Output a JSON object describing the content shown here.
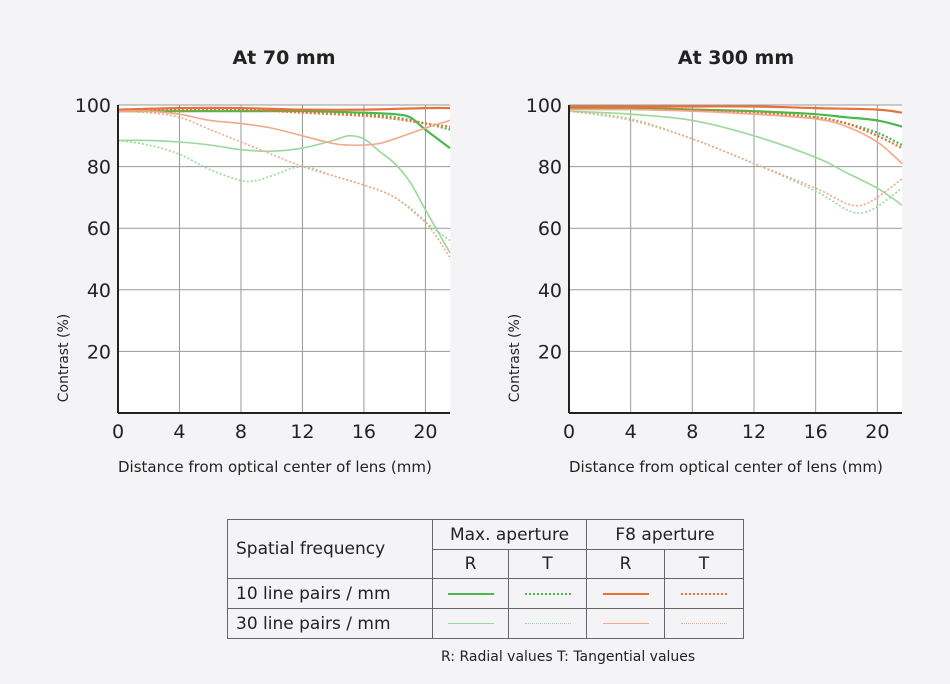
{
  "colors": {
    "max_10": "#4cb84c",
    "max_30": "#9bd89b",
    "f8_10": "#e8703a",
    "f8_30": "#f2a98a",
    "grid": "#999999",
    "axis": "#222222"
  },
  "chart_data": [
    {
      "type": "line",
      "title": "At 70 mm",
      "xlabel": "Distance from optical center of lens (mm)",
      "ylabel": "Contrast (%)",
      "xlim": [
        0,
        21.6
      ],
      "ylim": [
        0,
        100
      ],
      "xticks": [
        "0",
        "4",
        "8",
        "12",
        "16",
        "20"
      ],
      "yticks": [
        "20",
        "40",
        "60",
        "80",
        "100"
      ],
      "grid": true,
      "series": [
        {
          "key": "max_10",
          "style": "solid",
          "points": [
            [
              0,
              98
            ],
            [
              4,
              98
            ],
            [
              8,
              98
            ],
            [
              12,
              98
            ],
            [
              16,
              97.5
            ],
            [
              18,
              97
            ],
            [
              19,
              96
            ],
            [
              20,
              92
            ],
            [
              21.6,
              86
            ]
          ]
        },
        {
          "key": "max_10",
          "style": "dotted",
          "points": [
            [
              0,
              98
            ],
            [
              4,
              98
            ],
            [
              8,
              98.5
            ],
            [
              12,
              98
            ],
            [
              16,
              97
            ],
            [
              18,
              96
            ],
            [
              20,
              94
            ],
            [
              21.6,
              92
            ]
          ]
        },
        {
          "key": "max_30",
          "style": "solid",
          "points": [
            [
              0,
              88.5
            ],
            [
              2,
              88.5
            ],
            [
              4,
              88
            ],
            [
              6,
              87
            ],
            [
              8,
              85.5
            ],
            [
              10,
              85
            ],
            [
              12,
              86
            ],
            [
              14,
              88.5
            ],
            [
              15,
              90
            ],
            [
              16,
              89
            ],
            [
              17,
              85
            ],
            [
              18,
              81
            ],
            [
              19,
              75
            ],
            [
              20,
              66
            ],
            [
              21.6,
              52
            ]
          ]
        },
        {
          "key": "max_30",
          "style": "dotted",
          "points": [
            [
              0,
              88.5
            ],
            [
              2,
              87
            ],
            [
              4,
              84
            ],
            [
              6,
              79
            ],
            [
              8,
              75.5
            ],
            [
              9,
              75.5
            ],
            [
              10,
              77
            ],
            [
              12,
              80
            ],
            [
              14,
              77
            ],
            [
              16,
              74
            ],
            [
              18,
              70
            ],
            [
              20,
              62
            ],
            [
              21.6,
              56
            ]
          ]
        },
        {
          "key": "f8_10",
          "style": "solid",
          "points": [
            [
              0,
              98.5
            ],
            [
              4,
              99
            ],
            [
              8,
              99
            ],
            [
              12,
              98.5
            ],
            [
              16,
              98.5
            ],
            [
              20,
              99
            ],
            [
              21.6,
              99
            ]
          ]
        },
        {
          "key": "f8_10",
          "style": "dotted",
          "points": [
            [
              0,
              98
            ],
            [
              4,
              98.5
            ],
            [
              8,
              98.5
            ],
            [
              12,
              97.5
            ],
            [
              16,
              96.5
            ],
            [
              18,
              95.5
            ],
            [
              20,
              94
            ],
            [
              21.6,
              93
            ]
          ]
        },
        {
          "key": "f8_30",
          "style": "solid",
          "points": [
            [
              0,
              98
            ],
            [
              2,
              98
            ],
            [
              4,
              97
            ],
            [
              6,
              95
            ],
            [
              8,
              94
            ],
            [
              10,
              92.5
            ],
            [
              12,
              90
            ],
            [
              14,
              87.5
            ],
            [
              15,
              87
            ],
            [
              16,
              87
            ],
            [
              17,
              87.5
            ],
            [
              18,
              89
            ],
            [
              20,
              92.5
            ],
            [
              21.6,
              95
            ]
          ]
        },
        {
          "key": "f8_30",
          "style": "dotted",
          "points": [
            [
              0,
              98
            ],
            [
              2,
              97.5
            ],
            [
              4,
              96
            ],
            [
              6,
              92
            ],
            [
              8,
              88
            ],
            [
              10,
              84
            ],
            [
              12,
              80
            ],
            [
              14,
              77
            ],
            [
              16,
              74
            ],
            [
              18,
              70
            ],
            [
              20,
              62
            ],
            [
              21.6,
              50.5
            ]
          ]
        }
      ]
    },
    {
      "type": "line",
      "title": "At 300 mm",
      "xlabel": "Distance from optical center of lens (mm)",
      "ylabel": "Contrast (%)",
      "xlim": [
        0,
        21.6
      ],
      "ylim": [
        0,
        100
      ],
      "xticks": [
        "0",
        "4",
        "8",
        "12",
        "16",
        "20"
      ],
      "yticks": [
        "20",
        "40",
        "60",
        "80",
        "100"
      ],
      "grid": true,
      "series": [
        {
          "key": "max_10",
          "style": "solid",
          "points": [
            [
              0,
              99
            ],
            [
              4,
              99
            ],
            [
              8,
              98.5
            ],
            [
              12,
              98
            ],
            [
              16,
              97
            ],
            [
              18,
              96
            ],
            [
              20,
              95
            ],
            [
              21.6,
              93
            ]
          ]
        },
        {
          "key": "max_10",
          "style": "dotted",
          "points": [
            [
              0,
              99
            ],
            [
              4,
              99
            ],
            [
              8,
              98.5
            ],
            [
              12,
              97.5
            ],
            [
              16,
              96
            ],
            [
              18,
              94
            ],
            [
              20,
              91
            ],
            [
              21.6,
              87
            ]
          ]
        },
        {
          "key": "max_30",
          "style": "solid",
          "points": [
            [
              0,
              98
            ],
            [
              4,
              97
            ],
            [
              8,
              95
            ],
            [
              12,
              90
            ],
            [
              16,
              83
            ],
            [
              18,
              78
            ],
            [
              20,
              73
            ],
            [
              21.6,
              67.5
            ]
          ]
        },
        {
          "key": "max_30",
          "style": "dotted",
          "points": [
            [
              0,
              98
            ],
            [
              4,
              95
            ],
            [
              8,
              89
            ],
            [
              12,
              81
            ],
            [
              16,
              72
            ],
            [
              18,
              66
            ],
            [
              19,
              65
            ],
            [
              20,
              67
            ],
            [
              21.6,
              73
            ]
          ]
        },
        {
          "key": "f8_10",
          "style": "solid",
          "points": [
            [
              0,
              99.5
            ],
            [
              4,
              99.5
            ],
            [
              8,
              99.5
            ],
            [
              12,
              99.5
            ],
            [
              16,
              99
            ],
            [
              20,
              98.5
            ],
            [
              21.6,
              97.5
            ]
          ]
        },
        {
          "key": "f8_10",
          "style": "dotted",
          "points": [
            [
              0,
              99
            ],
            [
              4,
              99
            ],
            [
              8,
              98.5
            ],
            [
              12,
              97.5
            ],
            [
              16,
              96
            ],
            [
              18,
              94
            ],
            [
              20,
              90
            ],
            [
              21.6,
              86
            ]
          ]
        },
        {
          "key": "f8_30",
          "style": "solid",
          "points": [
            [
              0,
              98.5
            ],
            [
              4,
              98.5
            ],
            [
              8,
              98
            ],
            [
              12,
              97
            ],
            [
              16,
              95.5
            ],
            [
              18,
              93
            ],
            [
              20,
              88
            ],
            [
              21.6,
              81
            ]
          ]
        },
        {
          "key": "f8_30",
          "style": "dotted",
          "points": [
            [
              0,
              98
            ],
            [
              4,
              95.5
            ],
            [
              8,
              89
            ],
            [
              12,
              81
            ],
            [
              16,
              73
            ],
            [
              18,
              68
            ],
            [
              19,
              67.5
            ],
            [
              20,
              70
            ],
            [
              21.6,
              76
            ]
          ]
        }
      ]
    }
  ],
  "legend": {
    "header_label": "Spatial frequency",
    "groups": [
      "Max. aperture",
      "F8 aperture"
    ],
    "subheaders": [
      "R",
      "T",
      "R",
      "T"
    ],
    "rows": [
      {
        "label": "10 line pairs / mm",
        "samples": [
          {
            "color_key": "max_10",
            "style": "solid"
          },
          {
            "color_key": "max_10",
            "style": "dotted"
          },
          {
            "color_key": "f8_10",
            "style": "solid"
          },
          {
            "color_key": "f8_10",
            "style": "dotted"
          }
        ]
      },
      {
        "label": "30 line pairs / mm",
        "samples": [
          {
            "color_key": "max_30",
            "style": "solid"
          },
          {
            "color_key": "max_30",
            "style": "dotted"
          },
          {
            "color_key": "f8_30",
            "style": "solid"
          },
          {
            "color_key": "f8_30",
            "style": "dotted"
          }
        ]
      }
    ],
    "note": "R: Radial values  T: Tangential values"
  }
}
